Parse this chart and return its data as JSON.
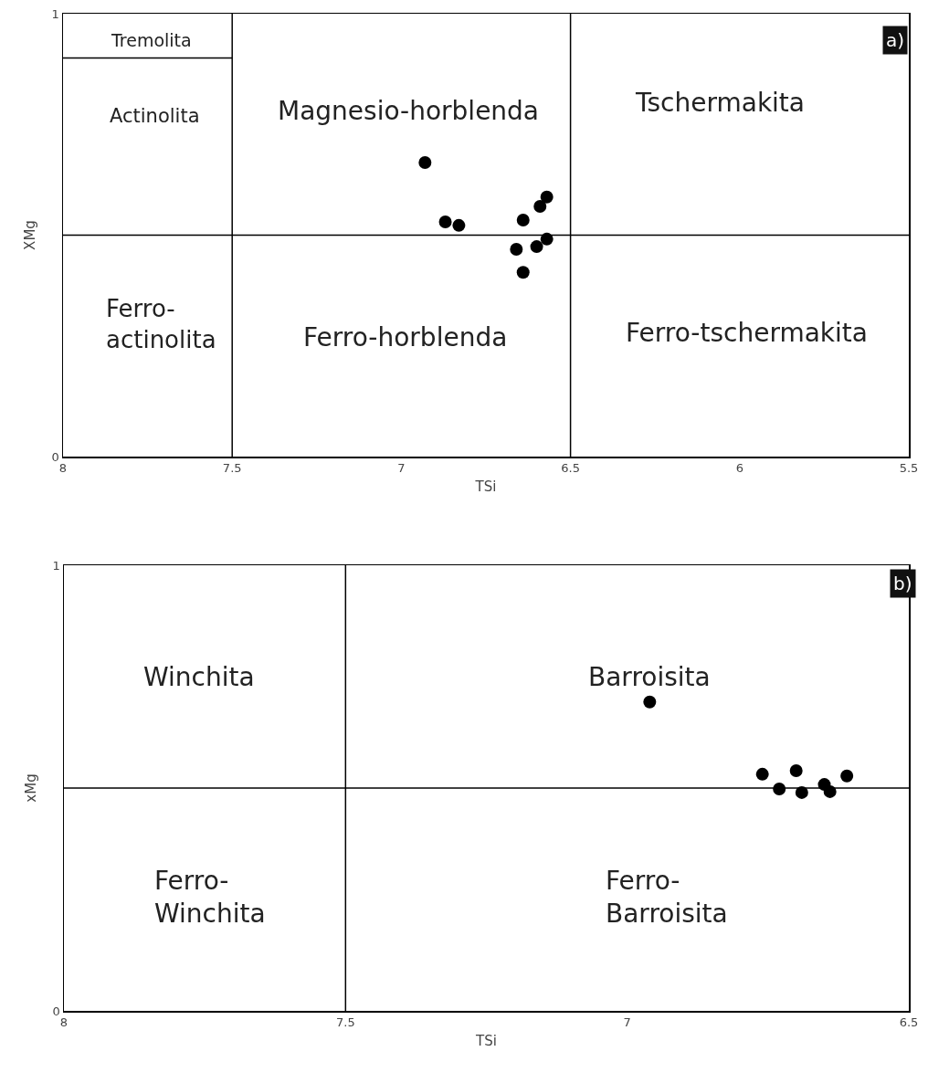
{
  "chart_data": [
    {
      "type": "scatter",
      "xlabel": "TSi",
      "ylabel": "XMg",
      "xlim": [
        8,
        5.5
      ],
      "ylim": [
        0,
        1
      ],
      "xticks": [
        8,
        7.5,
        7,
        6.5,
        6,
        5.5
      ],
      "yticks": [
        0,
        1
      ],
      "grid": false,
      "marker": "circle",
      "series": [
        {
          "color": "#000000",
          "x": [
            6.93,
            6.57,
            6.59
          ],
          "values": [
            0.664,
            0.586,
            0.565
          ]
        },
        {
          "color": "#000000",
          "x": [
            6.87,
            6.83,
            6.64,
            6.57,
            6.6,
            6.66,
            6.64
          ],
          "values": [
            0.53,
            0.522,
            0.534,
            0.491,
            0.474,
            0.468,
            0.416
          ]
        },
        {
          "type": "line",
          "marker": "none",
          "color": "#000000",
          "x": [
            8,
            7.5
          ],
          "values": [
            0.9,
            0.9
          ]
        }
      ],
      "ref_lines": [
        {
          "axis": "x",
          "value": 7.5,
          "color": "#000000"
        },
        {
          "axis": "x",
          "value": 6.5,
          "color": "#000000"
        },
        {
          "axis": "y",
          "value": 0.5,
          "color": "#000000"
        }
      ],
      "annotations": [
        "Tremolita",
        "Actinolita",
        "Magnesio-horblenda",
        "Tschermakita",
        "Ferro-\nactinolita",
        "Ferro-horblenda",
        "Ferro-tschermakita",
        "a)"
      ]
    },
    {
      "type": "scatter",
      "xlabel": "TSi",
      "ylabel": "xMg",
      "xlim": [
        8,
        6.5
      ],
      "ylim": [
        0,
        1
      ],
      "xticks": [
        8,
        7.5,
        7,
        6.5
      ],
      "yticks": [
        0,
        1
      ],
      "grid": false,
      "marker": "circle",
      "series": [
        {
          "color": "#000000",
          "x": [
            6.96
          ],
          "values": [
            0.693
          ]
        },
        {
          "color": "#000000",
          "x": [
            6.76,
            6.7,
            6.61,
            6.73,
            6.69,
            6.65,
            6.64
          ],
          "values": [
            0.531,
            0.539,
            0.527,
            0.498,
            0.49,
            0.508,
            0.492
          ]
        }
      ],
      "ref_lines": [
        {
          "axis": "x",
          "value": 7.5,
          "color": "#000000"
        },
        {
          "axis": "y",
          "value": 0.5,
          "color": "#000000"
        }
      ],
      "annotations": [
        "Winchita",
        "Barroisita",
        "Ferro-\nWinchita",
        "Ferro-\nBarroisita",
        "b)"
      ]
    }
  ]
}
